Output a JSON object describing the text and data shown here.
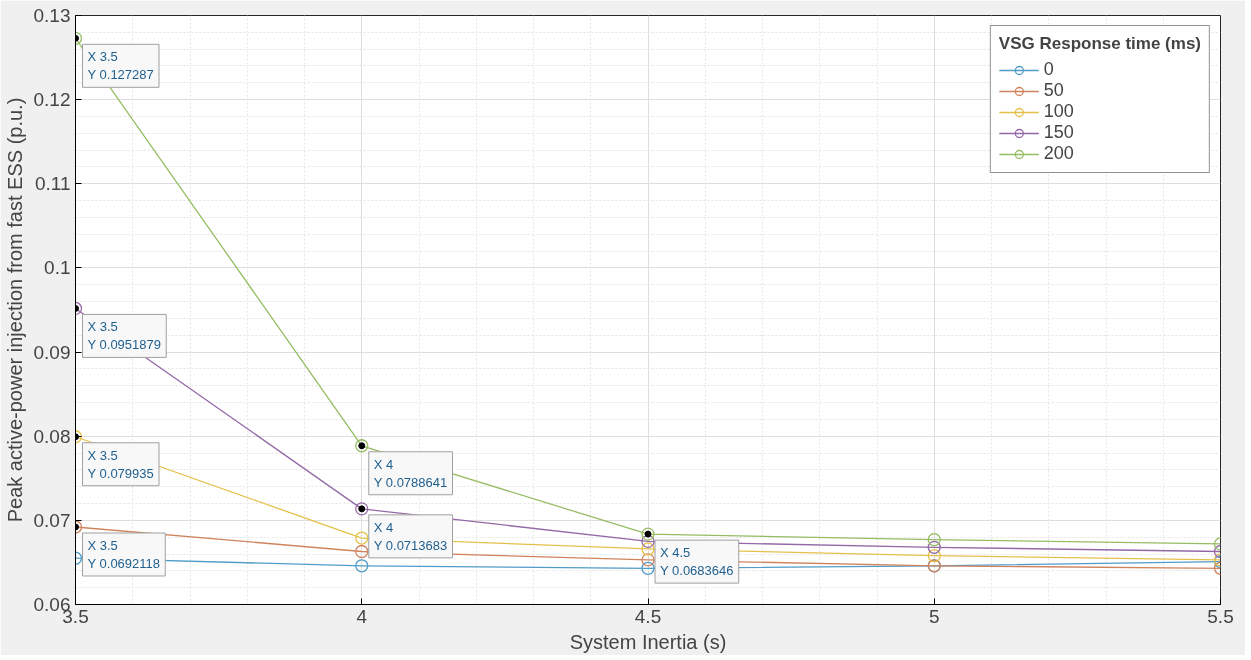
{
  "chart_data": {
    "type": "line",
    "xlabel": "System Inertia (s)",
    "ylabel": "Peak active-power injection from fast ESS (p.u.)",
    "legend_title": "VSG Response time (ms)",
    "x": [
      3.5,
      4,
      4.5,
      5,
      5.5
    ],
    "series": [
      {
        "name": "0",
        "color": "#4f9cc8",
        "values": [
          0.0655,
          0.0646,
          0.0643,
          0.0646,
          0.0651
        ]
      },
      {
        "name": "50",
        "color": "#d0845e",
        "values": [
          0.0692118,
          0.0663,
          0.0653,
          0.0646,
          0.0643
        ]
      },
      {
        "name": "100",
        "color": "#e4c04a",
        "values": [
          0.079935,
          0.0679,
          0.0666,
          0.0658,
          0.0653
        ]
      },
      {
        "name": "150",
        "color": "#9468a6",
        "values": [
          0.0951879,
          0.0713683,
          0.0675,
          0.0668,
          0.0663
        ]
      },
      {
        "name": "200",
        "color": "#96bc64",
        "values": [
          0.127287,
          0.0788641,
          0.0683646,
          0.0677,
          0.0672
        ]
      }
    ],
    "xlim": [
      3.5,
      5.5
    ],
    "xticks": [
      3.5,
      4,
      4.5,
      5,
      5.5
    ],
    "ylim": [
      0.06,
      0.13
    ],
    "yticks": [
      0.06,
      0.07,
      0.08,
      0.09,
      0.1,
      0.11,
      0.12,
      0.13
    ],
    "grid": true,
    "legend": "top right",
    "marker": "circle",
    "line_style": "solid",
    "annotations": [
      {
        "text": "X 3.5\nY 0.127287",
        "x": 3.5,
        "y": 0.127287
      },
      {
        "text": "X 3.5\nY 0.0951879",
        "x": 3.5,
        "y": 0.0951879
      },
      {
        "text": "X 3.5\nY 0.079935",
        "x": 3.5,
        "y": 0.079935
      },
      {
        "text": "X 3.5\nY 0.0692118",
        "x": 3.5,
        "y": 0.0692118
      },
      {
        "text": "X 4\nY 0.0788641",
        "x": 4,
        "y": 0.0788641
      },
      {
        "text": "X 4\nY 0.0713683",
        "x": 4,
        "y": 0.0713683
      },
      {
        "text": "X 4.5\nY 0.0683646",
        "x": 4.5,
        "y": 0.0683646
      }
    ]
  }
}
